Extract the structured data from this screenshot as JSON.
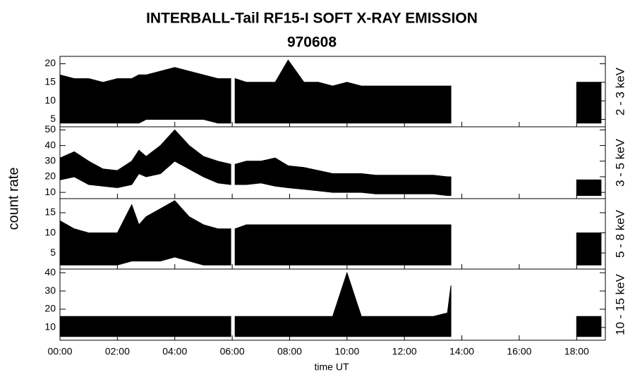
{
  "title": "INTERBALL-Tail RF15-I SOFT X-RAY EMISSION",
  "subtitle": "970608",
  "y_label": "count rate",
  "x_label": "time UT",
  "x": [
    0,
    0.5,
    1,
    1.5,
    2,
    2.5,
    2.75,
    3,
    3.5,
    4,
    4.5,
    5,
    5.5,
    5.95,
    6.02,
    6.1,
    6.5,
    7,
    7.5,
    7.95,
    8.5,
    9,
    9.5,
    10.0,
    10.5,
    11,
    11.5,
    12,
    12.5,
    13,
    13.5,
    13.62,
    13.9,
    18.0,
    18.5,
    18.85
  ],
  "xlim": [
    0,
    19
  ],
  "xticks": [
    {
      "value": 0,
      "label": "00:00"
    },
    {
      "value": 2,
      "label": "02:00"
    },
    {
      "value": 4,
      "label": "04:00"
    },
    {
      "value": 6,
      "label": "06:00"
    },
    {
      "value": 8,
      "label": "08:00"
    },
    {
      "value": 10,
      "label": "10:00"
    },
    {
      "value": 12,
      "label": "12:00"
    },
    {
      "value": 14,
      "label": "14:00"
    },
    {
      "value": 16,
      "label": "16:00"
    },
    {
      "value": 18,
      "label": "18:00"
    }
  ],
  "chart_data": [
    {
      "type": "band",
      "label": "2 - 3 keV",
      "color": "#000000",
      "ylim": [
        3,
        22
      ],
      "yticks": [
        5,
        10,
        15,
        20
      ],
      "high": [
        17,
        16,
        16,
        15,
        16,
        16,
        17,
        17,
        18,
        19,
        18,
        17,
        16,
        16,
        null,
        16,
        15,
        15,
        15,
        21,
        15,
        15,
        14,
        15,
        14,
        14,
        14,
        14,
        14,
        14,
        14,
        14,
        null,
        15,
        15,
        15
      ],
      "low": [
        4,
        4,
        4,
        4,
        4,
        4,
        4,
        5,
        5,
        5,
        5,
        5,
        4,
        4,
        null,
        4,
        4,
        4,
        4,
        4,
        4,
        4,
        4,
        4,
        4,
        4,
        4,
        4,
        4,
        4,
        4,
        4,
        null,
        4,
        4,
        4
      ]
    },
    {
      "type": "band",
      "label": "3 - 5 keV",
      "color": "#000000",
      "ylim": [
        6,
        52
      ],
      "yticks": [
        10,
        20,
        30,
        40,
        50
      ],
      "high": [
        32,
        36,
        30,
        25,
        24,
        30,
        37,
        33,
        40,
        50,
        40,
        33,
        30,
        28,
        null,
        28,
        30,
        30,
        32,
        27,
        26,
        24,
        22,
        22,
        22,
        21,
        21,
        21,
        21,
        21,
        20,
        20,
        null,
        18,
        18,
        18
      ],
      "low": [
        18,
        20,
        15,
        14,
        13,
        15,
        22,
        20,
        22,
        30,
        25,
        20,
        16,
        15,
        null,
        15,
        15,
        16,
        14,
        13,
        12,
        11,
        10,
        10,
        10,
        9,
        9,
        9,
        9,
        9,
        8,
        8,
        null,
        8,
        8,
        8
      ]
    },
    {
      "type": "band",
      "label": "5 - 8 keV",
      "color": "#000000",
      "ylim": [
        1,
        18.5
      ],
      "yticks": [
        5,
        10,
        15
      ],
      "high": [
        13,
        11,
        10,
        10,
        10,
        17,
        12,
        14,
        16,
        18,
        14,
        12,
        11,
        11,
        null,
        11,
        12,
        12,
        12,
        12,
        12,
        12,
        12,
        12,
        12,
        12,
        12,
        12,
        12,
        12,
        12,
        12,
        null,
        10,
        10,
        10
      ],
      "low": [
        2,
        2,
        2,
        2,
        2,
        3,
        3,
        3,
        3,
        4,
        3,
        2,
        2,
        2,
        null,
        2,
        2,
        2,
        2,
        2,
        2,
        2,
        2,
        2,
        2,
        2,
        2,
        2,
        2,
        2,
        2,
        2,
        null,
        2,
        2,
        2
      ]
    },
    {
      "type": "band",
      "label": "10 - 15 keV",
      "color": "#000000",
      "ylim": [
        3,
        42
      ],
      "yticks": [
        10,
        20,
        30,
        40
      ],
      "high": [
        16,
        16,
        16,
        16,
        16,
        16,
        16,
        16,
        16,
        16,
        16,
        16,
        16,
        16,
        null,
        16,
        16,
        16,
        16,
        16,
        16,
        16,
        16,
        40,
        16,
        16,
        16,
        16,
        16,
        16,
        18,
        33,
        null,
        16,
        16,
        16
      ],
      "low": [
        5,
        5,
        5,
        5,
        5,
        5,
        5,
        5,
        5,
        5,
        5,
        5,
        5,
        5,
        null,
        5,
        5,
        5,
        5,
        5,
        5,
        5,
        5,
        5,
        5,
        5,
        5,
        5,
        5,
        5,
        5,
        5,
        null,
        5,
        5,
        5
      ]
    }
  ]
}
